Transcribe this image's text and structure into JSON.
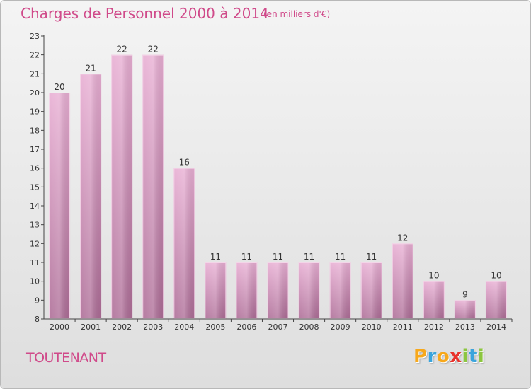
{
  "header": {
    "title": "Charges de Personnel 2000 à 2014",
    "subtitle": "(en milliers d'€)"
  },
  "place_name": "TOUTENANT",
  "logo": {
    "letters": [
      "P",
      "r",
      "o",
      "x",
      "i",
      "t",
      "i"
    ],
    "colors": [
      "#f7a81b",
      "#3aa4dc",
      "#f7a81b",
      "#e8322b",
      "#8cc63f",
      "#3aa4dc",
      "#8cc63f"
    ]
  },
  "colors": {
    "title": "#d04a8a",
    "bar_top": "#e5a9cf",
    "bar_bottom": "#b06e98",
    "bar_edge": "#f2d2e6"
  },
  "chart_data": {
    "type": "bar",
    "title": "Charges de Personnel 2000 à 2014",
    "subtitle": "(en milliers d'€)",
    "categories": [
      "2000",
      "2001",
      "2002",
      "2003",
      "2004",
      "2005",
      "2006",
      "2007",
      "2008",
      "2009",
      "2010",
      "2011",
      "2012",
      "2013",
      "2014"
    ],
    "values": [
      20,
      21,
      22,
      22,
      16,
      11,
      11,
      11,
      11,
      11,
      11,
      12,
      10,
      9,
      10
    ],
    "ylim": [
      8,
      23
    ],
    "yticks": [
      8,
      9,
      10,
      11,
      12,
      13,
      14,
      15,
      16,
      17,
      18,
      19,
      20,
      21,
      22,
      23
    ],
    "grid": false,
    "legend": "none"
  }
}
